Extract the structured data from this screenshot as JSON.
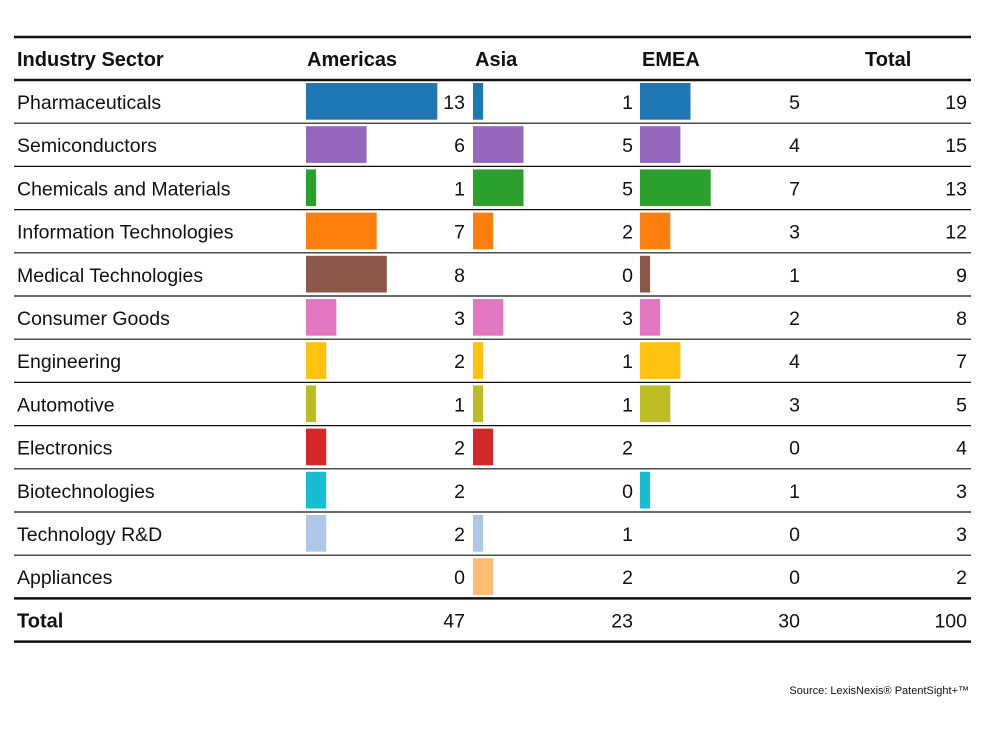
{
  "chart_data": {
    "type": "table",
    "columns": [
      "Industry Sector",
      "Americas",
      "Asia",
      "EMEA",
      "Total"
    ],
    "rows": [
      {
        "sector": "Pharmaceuticals",
        "americas": 13,
        "asia": 1,
        "emea": 5,
        "total": 19,
        "color": "#1f77b4"
      },
      {
        "sector": "Semiconductors",
        "americas": 6,
        "asia": 5,
        "emea": 4,
        "total": 15,
        "color": "#9467bd"
      },
      {
        "sector": "Chemicals and Materials",
        "americas": 1,
        "asia": 5,
        "emea": 7,
        "total": 13,
        "color": "#2ca02c"
      },
      {
        "sector": "Information Technologies",
        "americas": 7,
        "asia": 2,
        "emea": 3,
        "total": 12,
        "color": "#ff7f0e"
      },
      {
        "sector": "Medical Technologies",
        "americas": 8,
        "asia": 0,
        "emea": 1,
        "total": 9,
        "color": "#8c564b"
      },
      {
        "sector": "Consumer Goods",
        "americas": 3,
        "asia": 3,
        "emea": 2,
        "total": 8,
        "color": "#e377c2"
      },
      {
        "sector": "Engineering",
        "americas": 2,
        "asia": 1,
        "emea": 4,
        "total": 7,
        "color": "#ffc20e"
      },
      {
        "sector": "Automotive",
        "americas": 1,
        "asia": 1,
        "emea": 3,
        "total": 5,
        "color": "#bcbd22"
      },
      {
        "sector": "Electronics",
        "americas": 2,
        "asia": 2,
        "emea": 0,
        "total": 4,
        "color": "#d62728"
      },
      {
        "sector": "Biotechnologies",
        "americas": 2,
        "asia": 0,
        "emea": 1,
        "total": 3,
        "color": "#17becf"
      },
      {
        "sector": "Technology R&D",
        "americas": 2,
        "asia": 1,
        "emea": 0,
        "total": 3,
        "color": "#aec7e8"
      },
      {
        "sector": "Appliances",
        "americas": 0,
        "asia": 2,
        "emea": 0,
        "total": 2,
        "color": "#ffbb78"
      }
    ],
    "totals": {
      "label": "Total",
      "americas": 47,
      "asia": 23,
      "emea": 30,
      "total": 100
    },
    "source": "Source: LexisNexis® PatentSight+™"
  }
}
